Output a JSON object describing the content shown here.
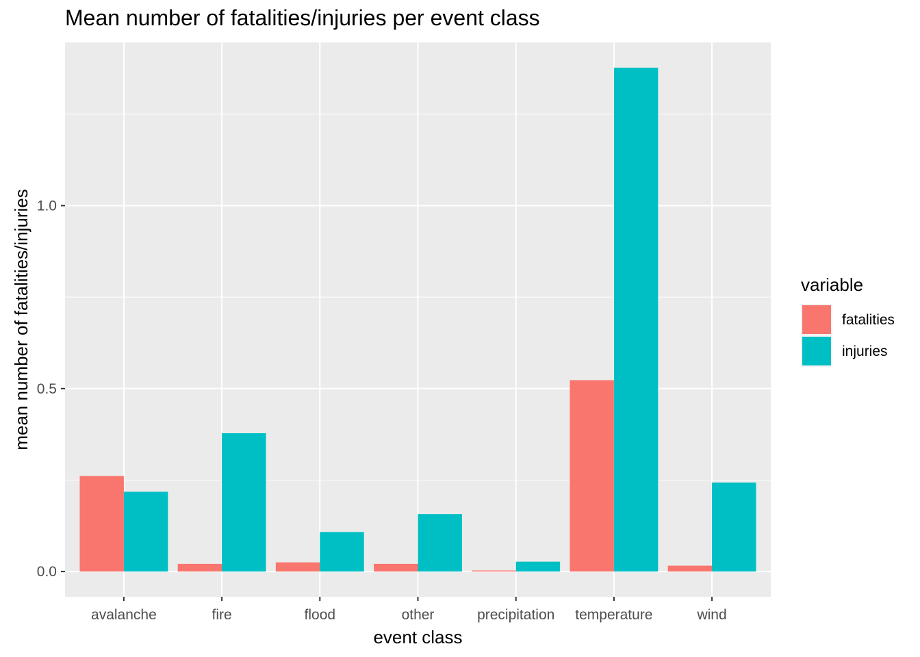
{
  "chart_data": {
    "type": "bar",
    "title": "Mean number of fatalities/injuries per event class",
    "xlabel": "event class",
    "ylabel": "mean number of fatalities/injuries",
    "categories": [
      "avalanche",
      "fire",
      "flood",
      "other",
      "precipitation",
      "temperature",
      "wind"
    ],
    "series": [
      {
        "name": "fatalities",
        "color": "#F8766D",
        "values": [
          0.261,
          0.021,
          0.025,
          0.021,
          0.003,
          0.523,
          0.016
        ]
      },
      {
        "name": "injuries",
        "color": "#00BFC4",
        "values": [
          0.218,
          0.378,
          0.108,
          0.157,
          0.027,
          1.377,
          0.243
        ]
      }
    ],
    "ylim": [
      -0.069,
      1.446
    ],
    "yticks": [
      0.0,
      0.5,
      1.0
    ],
    "ytick_labels": [
      "0.0",
      "0.5",
      "1.0"
    ],
    "legend": {
      "title": "variable",
      "position": "right"
    },
    "grid": true,
    "panel_background": "#EBEBEB"
  }
}
